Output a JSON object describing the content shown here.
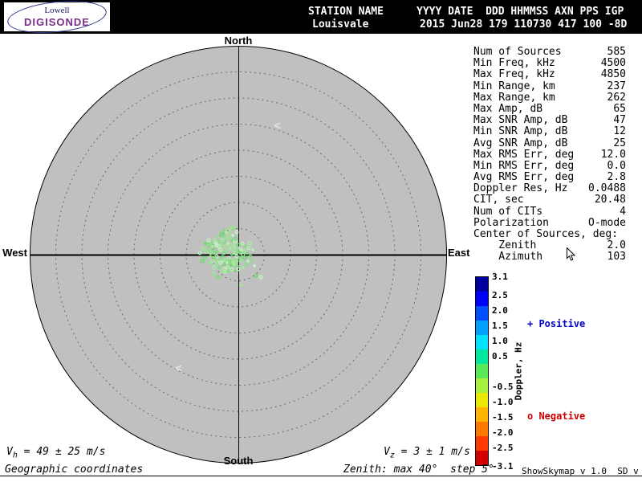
{
  "header": {
    "logo_line1": "Lowell",
    "logo_line2": "DIGISONDE",
    "lowell_color": "#1a1a5e",
    "digisonde_color": "#7b2d8b",
    "station_label": "STATION NAME",
    "station_value": "Louisvale",
    "fields_label": "YYYY DATE  DDD HHMMSS AXN PPS IGP",
    "fields_value": "2015 Jun28 179 110730 417 100 -8D"
  },
  "compass": {
    "north": "North",
    "south": "South",
    "east": "East",
    "west": "West"
  },
  "stats": {
    "rows": [
      {
        "label": "Num of Sources",
        "value": "585"
      },
      {
        "label": "Min Freq, kHz",
        "value": "4500"
      },
      {
        "label": "Max Freq, kHz",
        "value": "4850"
      },
      {
        "label": "Min Range, km",
        "value": "237"
      },
      {
        "label": "Max Range, km",
        "value": "262"
      },
      {
        "label": "Max Amp, dB",
        "value": "65"
      },
      {
        "label": "Max SNR Amp, dB",
        "value": "47"
      },
      {
        "label": "Min SNR Amp, dB",
        "value": "12"
      },
      {
        "label": "Avg SNR Amp, dB",
        "value": "25"
      },
      {
        "label": "Max RMS Err, deg",
        "value": "12.0"
      },
      {
        "label": "Min RMS Err, deg",
        "value": "0.0"
      },
      {
        "label": "Avg RMS Err, deg",
        "value": "2.8"
      },
      {
        "label": "Doppler Res, Hz",
        "value": "0.0488"
      },
      {
        "label": "CIT, sec",
        "value": "20.48"
      },
      {
        "label": "Num of CITs",
        "value": "4"
      },
      {
        "label": "Polarization",
        "value": "O-mode"
      },
      {
        "label": "Center of Sources, deg:",
        "value": ""
      },
      {
        "label": "    Zenith",
        "value": "2.0"
      },
      {
        "label": "    Azimuth",
        "value": "103"
      }
    ]
  },
  "colorbar": {
    "axis_label": "Doppler, Hz",
    "min": -3.1,
    "max": 3.1,
    "ticks": [
      "3.1",
      "2.5",
      "2.0",
      "1.5",
      "1.0",
      "0.5",
      "-0.5",
      "-1.0",
      "-1.5",
      "-2.0",
      "-2.5",
      "-3.1"
    ],
    "segments": [
      "#0000a0",
      "#0000ff",
      "#0050ff",
      "#00a0ff",
      "#00e0ff",
      "#00e8a0",
      "#58e858",
      "#a8f040",
      "#e8e800",
      "#ffb400",
      "#ff7800",
      "#ff3c00",
      "#d20000"
    ],
    "positive_label": "+ Positive",
    "negative_label": "o Negative",
    "positive_color": "#0000cc",
    "negative_color": "#cc0000"
  },
  "footer": {
    "vh": {
      "base": "V",
      "sub": "h",
      "rest": " = 49 ± 25 m/s"
    },
    "vz": {
      "base": "V",
      "sub": "z",
      "rest": " = 3 ± 1 m/s"
    },
    "coordinates": "Geographic coordinates",
    "zenith_note": "Zenith: max 40°  step 5°",
    "version": "ShowSkymap v 1.0  SD v 5.1"
  },
  "artifacts": {
    "chevron": "<"
  },
  "chart_data": {
    "type": "scatter",
    "description": "Digisonde skymap: reflection source locations relative to zenith (plot center). Offsets are pixels from center; ring spacing = 5 deg zenith up to 40 deg max. Green colors = Doppler near zero Hz; markers: o = negative Doppler, + = positive Doppler.",
    "zenith_max_deg": 40,
    "zenith_step_deg": 5,
    "center_of_sources": {
      "zenith_deg": 2.0,
      "azimuth_deg": 103
    },
    "palette": [
      "#8cf08c",
      "#a0f5a0",
      "#78e878",
      "#b4f8b4",
      "#64dc64",
      "#c4fac4",
      "#98ee80",
      "#70e070"
    ],
    "points": [
      [
        -14,
        -4,
        0,
        0
      ],
      [
        -10,
        -8,
        1,
        1
      ],
      [
        -18,
        -2,
        2,
        0
      ],
      [
        -22,
        -6,
        3,
        0
      ],
      [
        -8,
        0,
        4,
        1
      ],
      [
        -12,
        4,
        5,
        0
      ],
      [
        -16,
        -10,
        6,
        0
      ],
      [
        -20,
        2,
        7,
        1
      ],
      [
        -6,
        -6,
        0,
        0
      ],
      [
        -4,
        -2,
        1,
        0
      ],
      [
        -26,
        -4,
        2,
        1
      ],
      [
        -24,
        -10,
        3,
        0
      ],
      [
        -30,
        -2,
        4,
        0
      ],
      [
        -13,
        -14,
        5,
        1
      ],
      [
        -9,
        -12,
        6,
        0
      ],
      [
        -17,
        -16,
        7,
        0
      ],
      [
        -21,
        -12,
        0,
        1
      ],
      [
        -5,
        -10,
        1,
        0
      ],
      [
        -1,
        -4,
        2,
        0
      ],
      [
        1,
        -8,
        3,
        1
      ],
      [
        3,
        -2,
        4,
        0
      ],
      [
        -2,
        2,
        5,
        0
      ],
      [
        -7,
        6,
        6,
        1
      ],
      [
        -11,
        8,
        7,
        0
      ],
      [
        -15,
        6,
        0,
        0
      ],
      [
        -19,
        8,
        1,
        1
      ],
      [
        -23,
        6,
        2,
        0
      ],
      [
        -27,
        2,
        3,
        0
      ],
      [
        -31,
        -8,
        4,
        1
      ],
      [
        -28,
        -14,
        5,
        0
      ],
      [
        -12,
        -20,
        6,
        0
      ],
      [
        -8,
        -18,
        7,
        1
      ],
      [
        -16,
        -22,
        0,
        0
      ],
      [
        -20,
        -18,
        1,
        0
      ],
      [
        -24,
        -16,
        2,
        1
      ],
      [
        -4,
        -16,
        3,
        0
      ],
      [
        0,
        -12,
        4,
        0
      ],
      [
        4,
        -6,
        5,
        1
      ],
      [
        6,
        0,
        6,
        0
      ],
      [
        2,
        4,
        7,
        0
      ],
      [
        -2,
        8,
        0,
        1
      ],
      [
        -6,
        10,
        1,
        0
      ],
      [
        -10,
        12,
        2,
        0
      ],
      [
        -14,
        10,
        3,
        1
      ],
      [
        -18,
        12,
        4,
        0
      ],
      [
        -22,
        10,
        5,
        0
      ],
      [
        -26,
        8,
        6,
        1
      ],
      [
        -30,
        4,
        7,
        0
      ],
      [
        -34,
        -2,
        0,
        0
      ],
      [
        -32,
        -10,
        1,
        1
      ],
      [
        -36,
        -6,
        2,
        0
      ],
      [
        -13,
        16,
        3,
        0
      ],
      [
        -9,
        14,
        4,
        1
      ],
      [
        -17,
        18,
        5,
        0
      ],
      [
        -5,
        12,
        6,
        0
      ],
      [
        -1,
        14,
        7,
        1
      ],
      [
        3,
        8,
        0,
        0
      ],
      [
        7,
        -4,
        1,
        0
      ],
      [
        9,
        -10,
        2,
        1
      ],
      [
        5,
        -14,
        3,
        0
      ],
      [
        -3,
        -20,
        4,
        0
      ],
      [
        -7,
        -24,
        5,
        1
      ],
      [
        -11,
        -26,
        6,
        0
      ],
      [
        -19,
        -24,
        7,
        0
      ],
      [
        -25,
        -22,
        0,
        1
      ],
      [
        -29,
        -18,
        1,
        0
      ],
      [
        -33,
        -14,
        2,
        0
      ],
      [
        -15,
        -28,
        3,
        1
      ],
      [
        -21,
        -26,
        4,
        0
      ],
      [
        -27,
        -12,
        5,
        0
      ],
      [
        -35,
        2,
        6,
        1
      ],
      [
        -38,
        -12,
        7,
        0
      ],
      [
        -40,
        -4,
        0,
        0
      ],
      [
        -16,
        22,
        1,
        1
      ],
      [
        -12,
        20,
        2,
        0
      ],
      [
        -8,
        18,
        3,
        0
      ],
      [
        -4,
        20,
        4,
        1
      ],
      [
        0,
        18,
        5,
        0
      ],
      [
        -20,
        20,
        6,
        0
      ],
      [
        -24,
        16,
        7,
        1
      ],
      [
        -28,
        12,
        0,
        0
      ],
      [
        -32,
        8,
        1,
        0
      ],
      [
        11,
        -2,
        2,
        1
      ],
      [
        13,
        -8,
        3,
        0
      ],
      [
        8,
        4,
        4,
        0
      ],
      [
        12,
        8,
        5,
        1
      ],
      [
        -44,
        -8,
        6,
        0
      ],
      [
        -42,
        4,
        7,
        0
      ],
      [
        -36,
        10,
        0,
        1
      ],
      [
        -30,
        16,
        1,
        0
      ],
      [
        15,
        2,
        2,
        0
      ],
      [
        18,
        -6,
        3,
        1
      ],
      [
        22,
        26,
        4,
        0
      ],
      [
        28,
        28,
        5,
        0
      ],
      [
        3,
        38,
        6,
        1
      ],
      [
        -25,
        28,
        7,
        0
      ],
      [
        -31,
        24,
        0,
        0
      ],
      [
        6,
        16,
        1,
        1
      ],
      [
        10,
        12,
        2,
        0
      ],
      [
        -37,
        -18,
        3,
        0
      ],
      [
        -41,
        -14,
        4,
        1
      ],
      [
        -2,
        -28,
        5,
        0
      ],
      [
        -10,
        -32,
        6,
        0
      ],
      [
        -18,
        -30,
        7,
        1
      ],
      [
        -6,
        -34,
        0,
        0
      ],
      [
        14,
        -14,
        1,
        0
      ],
      [
        17,
        8,
        2,
        1
      ],
      [
        -48,
        -2,
        3,
        0
      ],
      [
        -45,
        8,
        4,
        0
      ],
      [
        20,
        14,
        5,
        1
      ]
    ]
  }
}
